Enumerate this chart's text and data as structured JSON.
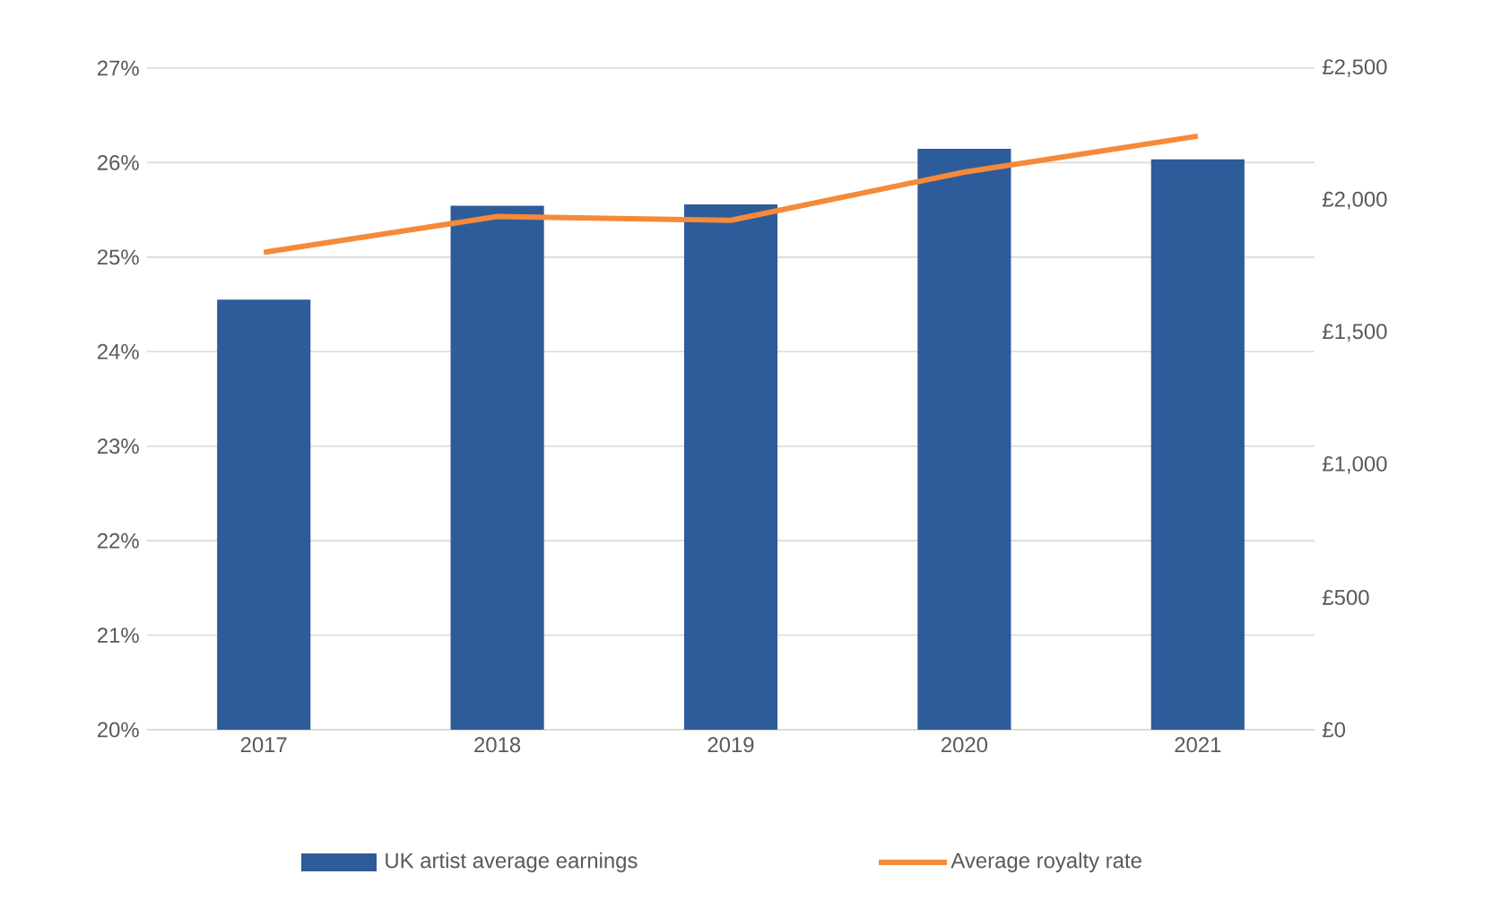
{
  "chart_data": {
    "type": "bar",
    "categories": [
      "2017",
      "2018",
      "2019",
      "2020",
      "2021"
    ],
    "series": [
      {
        "name": "UK artist average earnings",
        "axis": "y2",
        "color": "#2e5c9a",
        "values": [
          1625,
          1980,
          1985,
          2195,
          2155
        ]
      },
      {
        "name": "Average royalty rate",
        "type": "line",
        "axis": "y",
        "color": "#f58a3a",
        "values": [
          25.05,
          25.43,
          25.39,
          25.9,
          26.28
        ]
      }
    ],
    "ylim": [
      20,
      27
    ],
    "yticks": [
      {
        "value": 20,
        "label": "20%"
      },
      {
        "value": 21,
        "label": "21%"
      },
      {
        "value": 22,
        "label": "22%"
      },
      {
        "value": 23,
        "label": "23%"
      },
      {
        "value": 24,
        "label": "24%"
      },
      {
        "value": 25,
        "label": "25%"
      },
      {
        "value": 26,
        "label": "26%"
      },
      {
        "value": 27,
        "label": "27%"
      }
    ],
    "y2lim": [
      0,
      2500
    ],
    "y2ticks": [
      {
        "value": 0,
        "label": "£0"
      },
      {
        "value": 500,
        "label": "£500"
      },
      {
        "value": 1000,
        "label": "£1,000"
      },
      {
        "value": 1500,
        "label": "£1,500"
      },
      {
        "value": 2000,
        "label": "£2,000"
      },
      {
        "value": 2500,
        "label": "£2,500"
      }
    ],
    "grid": "y",
    "legend": "bottom",
    "marker": "none",
    "line_style": "solid"
  }
}
